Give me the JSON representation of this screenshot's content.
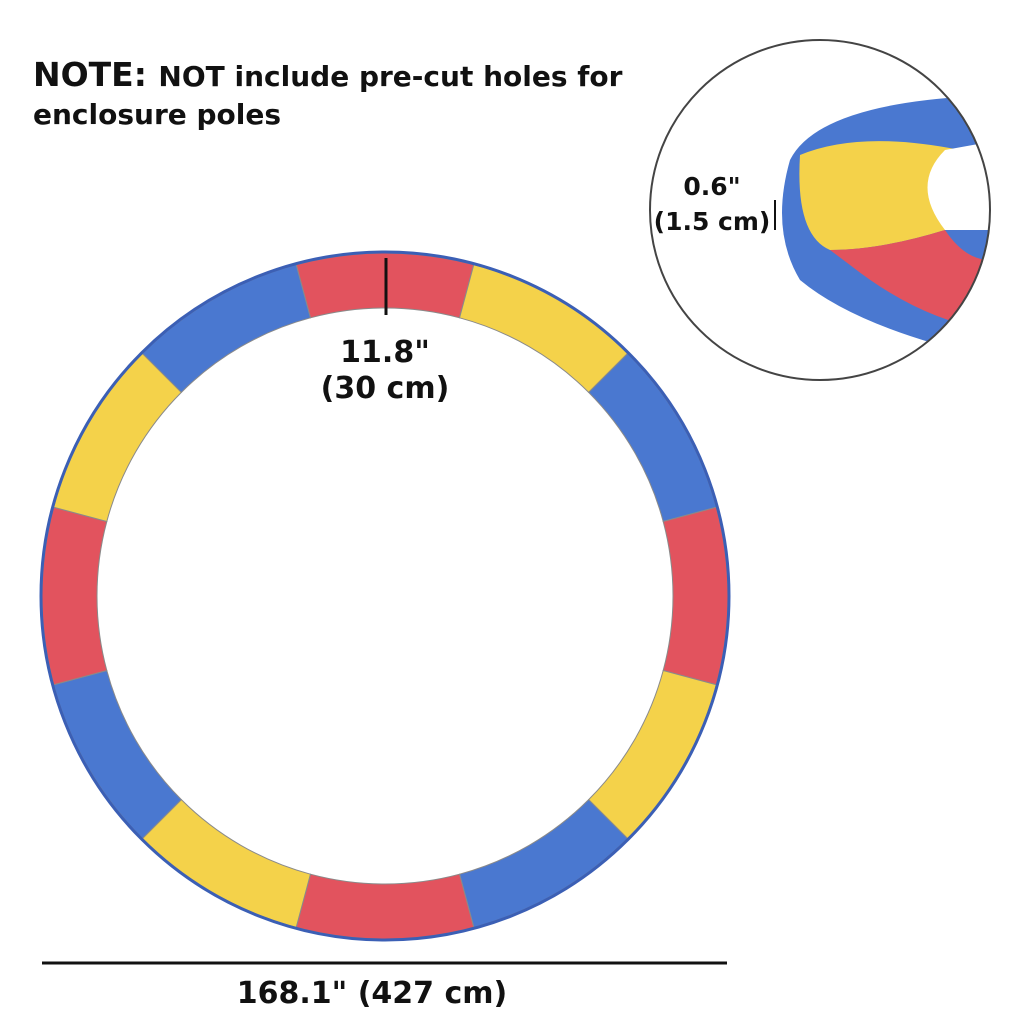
{
  "note": {
    "label": "NOTE:",
    "lines": [
      "NOT include pre-cut holes for",
      "enclosure poles"
    ]
  },
  "width_label": {
    "imperial": "11.8\"",
    "metric": "(30 cm)"
  },
  "thickness_label": {
    "imperial": "0.6\"",
    "metric": "(1.5 cm)"
  },
  "diameter_label": "168.1\" (427 cm)"
}
